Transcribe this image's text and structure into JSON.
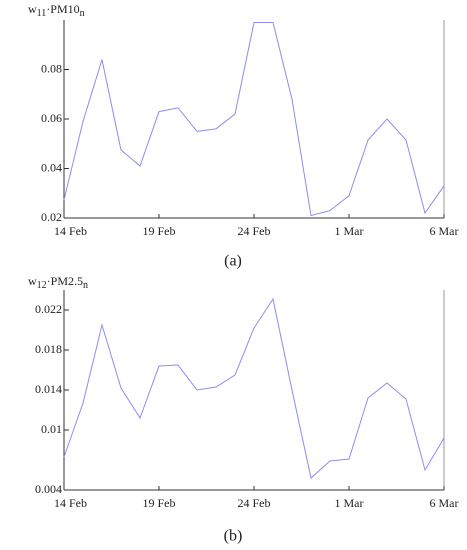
{
  "chart_data": [
    {
      "type": "line",
      "ylabel": [
        "w",
        "11",
        "·PM10",
        "n"
      ],
      "caption": "(a)",
      "categories": [
        "14 Feb",
        null,
        null,
        null,
        null,
        "19 Feb",
        null,
        null,
        null,
        null,
        "24 Feb",
        null,
        null,
        null,
        null,
        "1 Mar",
        null,
        null,
        null,
        null,
        "6 Mar"
      ],
      "series": [
        {
          "color": "#8c8cf0",
          "values": [
            0.0273,
            0.059,
            0.084,
            0.0475,
            0.041,
            0.063,
            0.0645,
            0.055,
            0.056,
            0.062,
            0.099,
            0.099,
            0.068,
            0.021,
            0.023,
            0.029,
            0.0515,
            0.06,
            0.0515,
            0.022,
            0.033
          ]
        }
      ],
      "ylim": [
        0.02,
        0.1
      ],
      "yticks": [
        0.02,
        0.04,
        0.06,
        0.08
      ]
    },
    {
      "type": "line",
      "ylabel": [
        "w",
        "12",
        "·PM2.5",
        "n"
      ],
      "caption": "(b)",
      "categories": [
        "14 Feb",
        null,
        null,
        null,
        null,
        "19 Feb",
        null,
        null,
        null,
        null,
        "24 Feb",
        null,
        null,
        null,
        null,
        "1 Mar",
        null,
        null,
        null,
        null,
        "6 Mar"
      ],
      "series": [
        {
          "color": "#8c8cf0",
          "values": [
            0.0073,
            0.0127,
            0.0205,
            0.0142,
            0.0112,
            0.0164,
            0.0165,
            0.014,
            0.0143,
            0.0155,
            0.0202,
            0.0231,
            0.014,
            0.0052,
            0.0069,
            0.0071,
            0.0132,
            0.0147,
            0.0131,
            0.006,
            0.0092
          ]
        }
      ],
      "ylim": [
        0.004,
        0.024
      ],
      "yticks": [
        0.004,
        0.01,
        0.014,
        0.018,
        0.022
      ]
    }
  ]
}
